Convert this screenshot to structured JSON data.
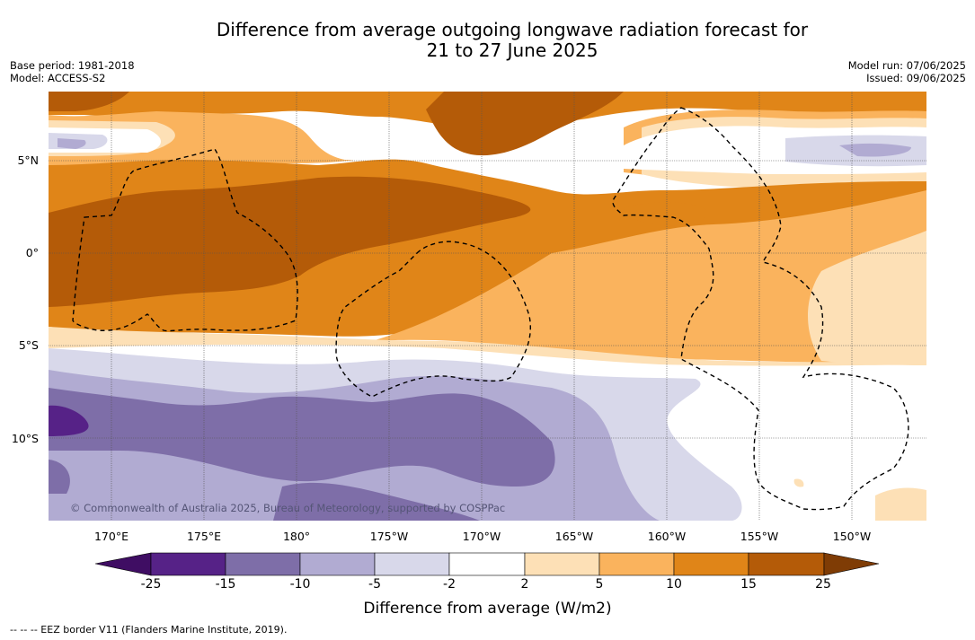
{
  "title": {
    "line1": "Difference from average outgoing longwave radiation forecast for",
    "line2": "21 to 27 June 2025"
  },
  "meta": {
    "base_period": "Base period: 1981-2018",
    "model": "Model: ACCESS-S2",
    "model_run": "Model run: 07/06/2025",
    "issued": "Issued: 09/06/2025"
  },
  "map": {
    "latitude_labels": [
      "5°N",
      "0°",
      "5°S",
      "10°S"
    ],
    "longitude_labels": [
      "170°E",
      "175°E",
      "180°",
      "175°W",
      "170°W",
      "165°W",
      "160°W",
      "155°W",
      "150°W"
    ],
    "copyright": "© Commonwealth of Australia 2025, Bureau of Meteorology, supported by COSPPac",
    "colors": {
      "c-25": "#3f0d63",
      "c-15": "#562287",
      "c-10": "#7e6ea8",
      "c-5": "#b1abd2",
      "c-2": "#d8d8ea",
      "c2": "#ffffff",
      "c5": "#fde0b6",
      "c10": "#fab35d",
      "c15": "#e08518",
      "c25": "#b45b08",
      "c_over": "#7f3c05"
    }
  },
  "colorbar": {
    "ticks": [
      "-25",
      "-15",
      "-10",
      "-5",
      "-2",
      "2",
      "5",
      "10",
      "15",
      "25"
    ],
    "label": "Difference from average (W/m2)"
  },
  "legend_note": "--  --  -- EEZ border V11 (Flanders Marine Institute, 2019)."
}
